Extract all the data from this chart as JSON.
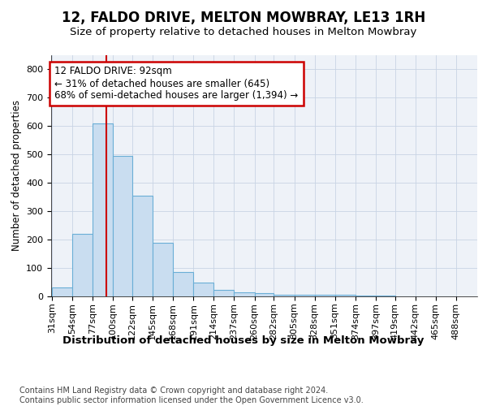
{
  "title1": "12, FALDO DRIVE, MELTON MOWBRAY, LE13 1RH",
  "title2": "Size of property relative to detached houses in Melton Mowbray",
  "xlabel": "Distribution of detached houses by size in Melton Mowbray",
  "ylabel": "Number of detached properties",
  "bin_labels": [
    "31sqm",
    "54sqm",
    "77sqm",
    "100sqm",
    "122sqm",
    "145sqm",
    "168sqm",
    "191sqm",
    "214sqm",
    "237sqm",
    "260sqm",
    "282sqm",
    "305sqm",
    "328sqm",
    "351sqm",
    "374sqm",
    "397sqm",
    "419sqm",
    "442sqm",
    "465sqm",
    "488sqm"
  ],
  "bin_edges": [
    31,
    54,
    77,
    100,
    122,
    145,
    168,
    191,
    214,
    237,
    260,
    282,
    305,
    328,
    351,
    374,
    397,
    419,
    442,
    465,
    488
  ],
  "bar_heights": [
    32,
    220,
    610,
    495,
    355,
    190,
    85,
    50,
    22,
    14,
    12,
    5,
    5,
    6,
    5,
    2,
    2,
    0,
    0,
    0
  ],
  "bar_color": "#c9ddf0",
  "bar_edge_color": "#6aaed6",
  "grid_color": "#c8d4e4",
  "background_color": "#eef2f8",
  "vline_x": 92,
  "vline_color": "#cc0000",
  "annotation_line1": "12 FALDO DRIVE: 92sqm",
  "annotation_line2": "← 31% of detached houses are smaller (645)",
  "annotation_line3": "68% of semi-detached houses are larger (1,394) →",
  "annotation_box_facecolor": "#ffffff",
  "annotation_box_edgecolor": "#cc0000",
  "ylim": [
    0,
    850
  ],
  "yticks": [
    0,
    100,
    200,
    300,
    400,
    500,
    600,
    700,
    800
  ],
  "footnote": "Contains HM Land Registry data © Crown copyright and database right 2024.\nContains public sector information licensed under the Open Government Licence v3.0.",
  "title1_fontsize": 12,
  "title2_fontsize": 9.5,
  "xlabel_fontsize": 9.5,
  "ylabel_fontsize": 8.5,
  "tick_fontsize": 8,
  "annotation_fontsize": 8.5,
  "footnote_fontsize": 7
}
